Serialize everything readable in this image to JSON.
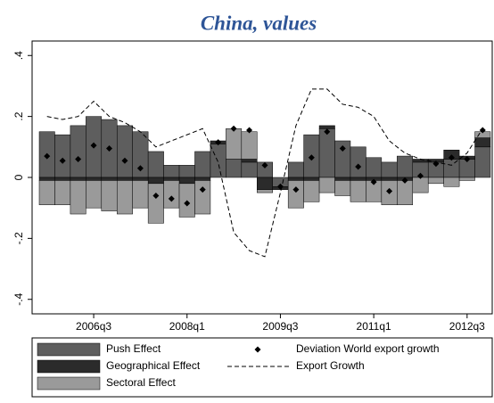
{
  "chart_data": {
    "type": "bar",
    "title": "China, values",
    "categories": [
      null,
      null,
      null,
      "2006q3",
      null,
      null,
      null,
      null,
      null,
      "2008q1",
      null,
      null,
      null,
      null,
      null,
      "2009q3",
      null,
      null,
      null,
      null,
      null,
      "2011q1",
      null,
      null,
      null,
      null,
      null,
      "2012q3",
      null
    ],
    "series": [
      {
        "name": "Push Effect",
        "type": "bar",
        "color": "#5e5e5e",
        "values": [
          0.15,
          0.14,
          0.17,
          0.2,
          0.19,
          0.17,
          0.15,
          0.085,
          0.04,
          0.04,
          0.085,
          0.11,
          0.06,
          0.05,
          0.05,
          -0.03,
          0.05,
          0.14,
          0.16,
          0.12,
          0.1,
          0.065,
          0.05,
          0.07,
          0.05,
          0.05,
          0.06,
          0.06,
          0.1
        ]
      },
      {
        "name": "Geographical Effect",
        "type": "bar",
        "color": "#2b2b2b",
        "values": [
          -0.01,
          -0.01,
          -0.01,
          -0.01,
          -0.01,
          -0.01,
          -0.01,
          -0.02,
          -0.01,
          -0.02,
          -0.01,
          0.01,
          0.0,
          0.01,
          -0.04,
          -0.01,
          -0.01,
          -0.01,
          0.01,
          -0.01,
          -0.01,
          -0.01,
          -0.01,
          -0.01,
          0.01,
          0.01,
          0.03,
          0.01,
          0.03
        ]
      },
      {
        "name": "Sectoral Effect",
        "type": "bar",
        "color": "#9a9a9a",
        "values": [
          -0.08,
          -0.08,
          -0.11,
          -0.09,
          -0.1,
          -0.11,
          -0.09,
          -0.13,
          -0.09,
          -0.11,
          -0.11,
          0.0,
          0.1,
          0.09,
          -0.01,
          0.0,
          -0.09,
          -0.07,
          -0.05,
          -0.05,
          -0.07,
          -0.07,
          -0.08,
          -0.08,
          -0.05,
          -0.02,
          -0.03,
          -0.01,
          0.02
        ]
      },
      {
        "name": "Deviation World export growth",
        "type": "scatter",
        "color": "#000000",
        "values": [
          0.07,
          0.055,
          0.06,
          0.105,
          0.095,
          0.055,
          0.03,
          -0.06,
          -0.07,
          -0.085,
          -0.04,
          0.115,
          0.16,
          0.155,
          0.04,
          -0.03,
          -0.04,
          0.065,
          0.15,
          0.095,
          0.035,
          -0.015,
          -0.045,
          -0.01,
          0.005,
          0.045,
          0.065,
          0.06,
          0.155
        ]
      },
      {
        "name": "Export Growth",
        "type": "line",
        "color": "#000000",
        "dash": true,
        "values": [
          0.2,
          0.19,
          0.2,
          0.25,
          0.2,
          0.18,
          0.15,
          0.1,
          0.12,
          0.14,
          0.16,
          0.05,
          -0.18,
          -0.24,
          -0.26,
          -0.05,
          0.17,
          0.29,
          0.29,
          0.24,
          0.23,
          0.2,
          0.12,
          0.08,
          0.06,
          0.05,
          0.04,
          0.08,
          0.16
        ]
      }
    ],
    "ylim": [
      -0.43,
      0.43
    ],
    "yticks": [
      {
        "value": -0.4,
        "label": "-.4"
      },
      {
        "value": -0.2,
        "label": "-.2"
      },
      0,
      {
        "value": 0.2,
        "label": ".2"
      },
      {
        "value": 0.4,
        "label": ".4"
      }
    ]
  }
}
